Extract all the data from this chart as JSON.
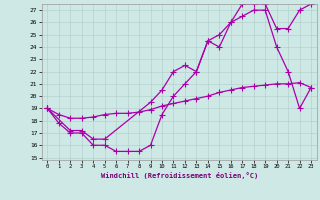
{
  "xlabel": "Windchill (Refroidissement éolien,°C)",
  "xlim": [
    -0.5,
    23.5
  ],
  "ylim": [
    14.8,
    27.5
  ],
  "xticks": [
    0,
    1,
    2,
    3,
    4,
    5,
    6,
    7,
    8,
    9,
    10,
    11,
    12,
    13,
    14,
    15,
    16,
    17,
    18,
    19,
    20,
    21,
    22,
    23
  ],
  "yticks": [
    15,
    16,
    17,
    18,
    19,
    20,
    21,
    22,
    23,
    24,
    25,
    26,
    27
  ],
  "bg_color": "#cde8e5",
  "grid_color": "#b0ccca",
  "line_color": "#aa00aa",
  "line1_x": [
    0,
    1,
    2,
    3,
    4,
    5,
    6,
    7,
    8,
    9,
    10,
    11,
    12,
    13,
    14,
    15,
    16,
    17,
    18,
    19,
    20,
    21,
    22,
    23
  ],
  "line1_y": [
    19,
    17.8,
    17,
    17,
    16,
    16,
    15.5,
    15.5,
    15.5,
    16,
    18.5,
    20,
    21,
    22,
    24.5,
    24,
    26,
    26.5,
    27,
    27,
    24,
    22,
    19,
    20.7
  ],
  "line2_x": [
    0,
    2,
    3,
    4,
    5,
    9,
    10,
    11,
    12,
    13,
    14,
    15,
    16,
    17,
    18,
    19,
    20,
    21,
    22,
    23
  ],
  "line2_y": [
    19,
    17.2,
    17.2,
    16.5,
    16.5,
    19.5,
    20.5,
    22,
    22.5,
    22,
    24.5,
    25,
    26,
    27.5,
    27.5,
    27.5,
    25.5,
    25.5,
    27,
    27.5
  ],
  "line3_x": [
    0,
    1,
    2,
    3,
    4,
    5,
    6,
    7,
    8,
    9,
    10,
    11,
    12,
    13,
    14,
    15,
    16,
    17,
    18,
    19,
    20,
    21,
    22,
    23
  ],
  "line3_y": [
    19,
    18.5,
    18.2,
    18.2,
    18.3,
    18.5,
    18.6,
    18.6,
    18.7,
    18.9,
    19.2,
    19.4,
    19.6,
    19.8,
    20,
    20.3,
    20.5,
    20.7,
    20.8,
    20.9,
    21,
    21,
    21.1,
    20.7
  ]
}
